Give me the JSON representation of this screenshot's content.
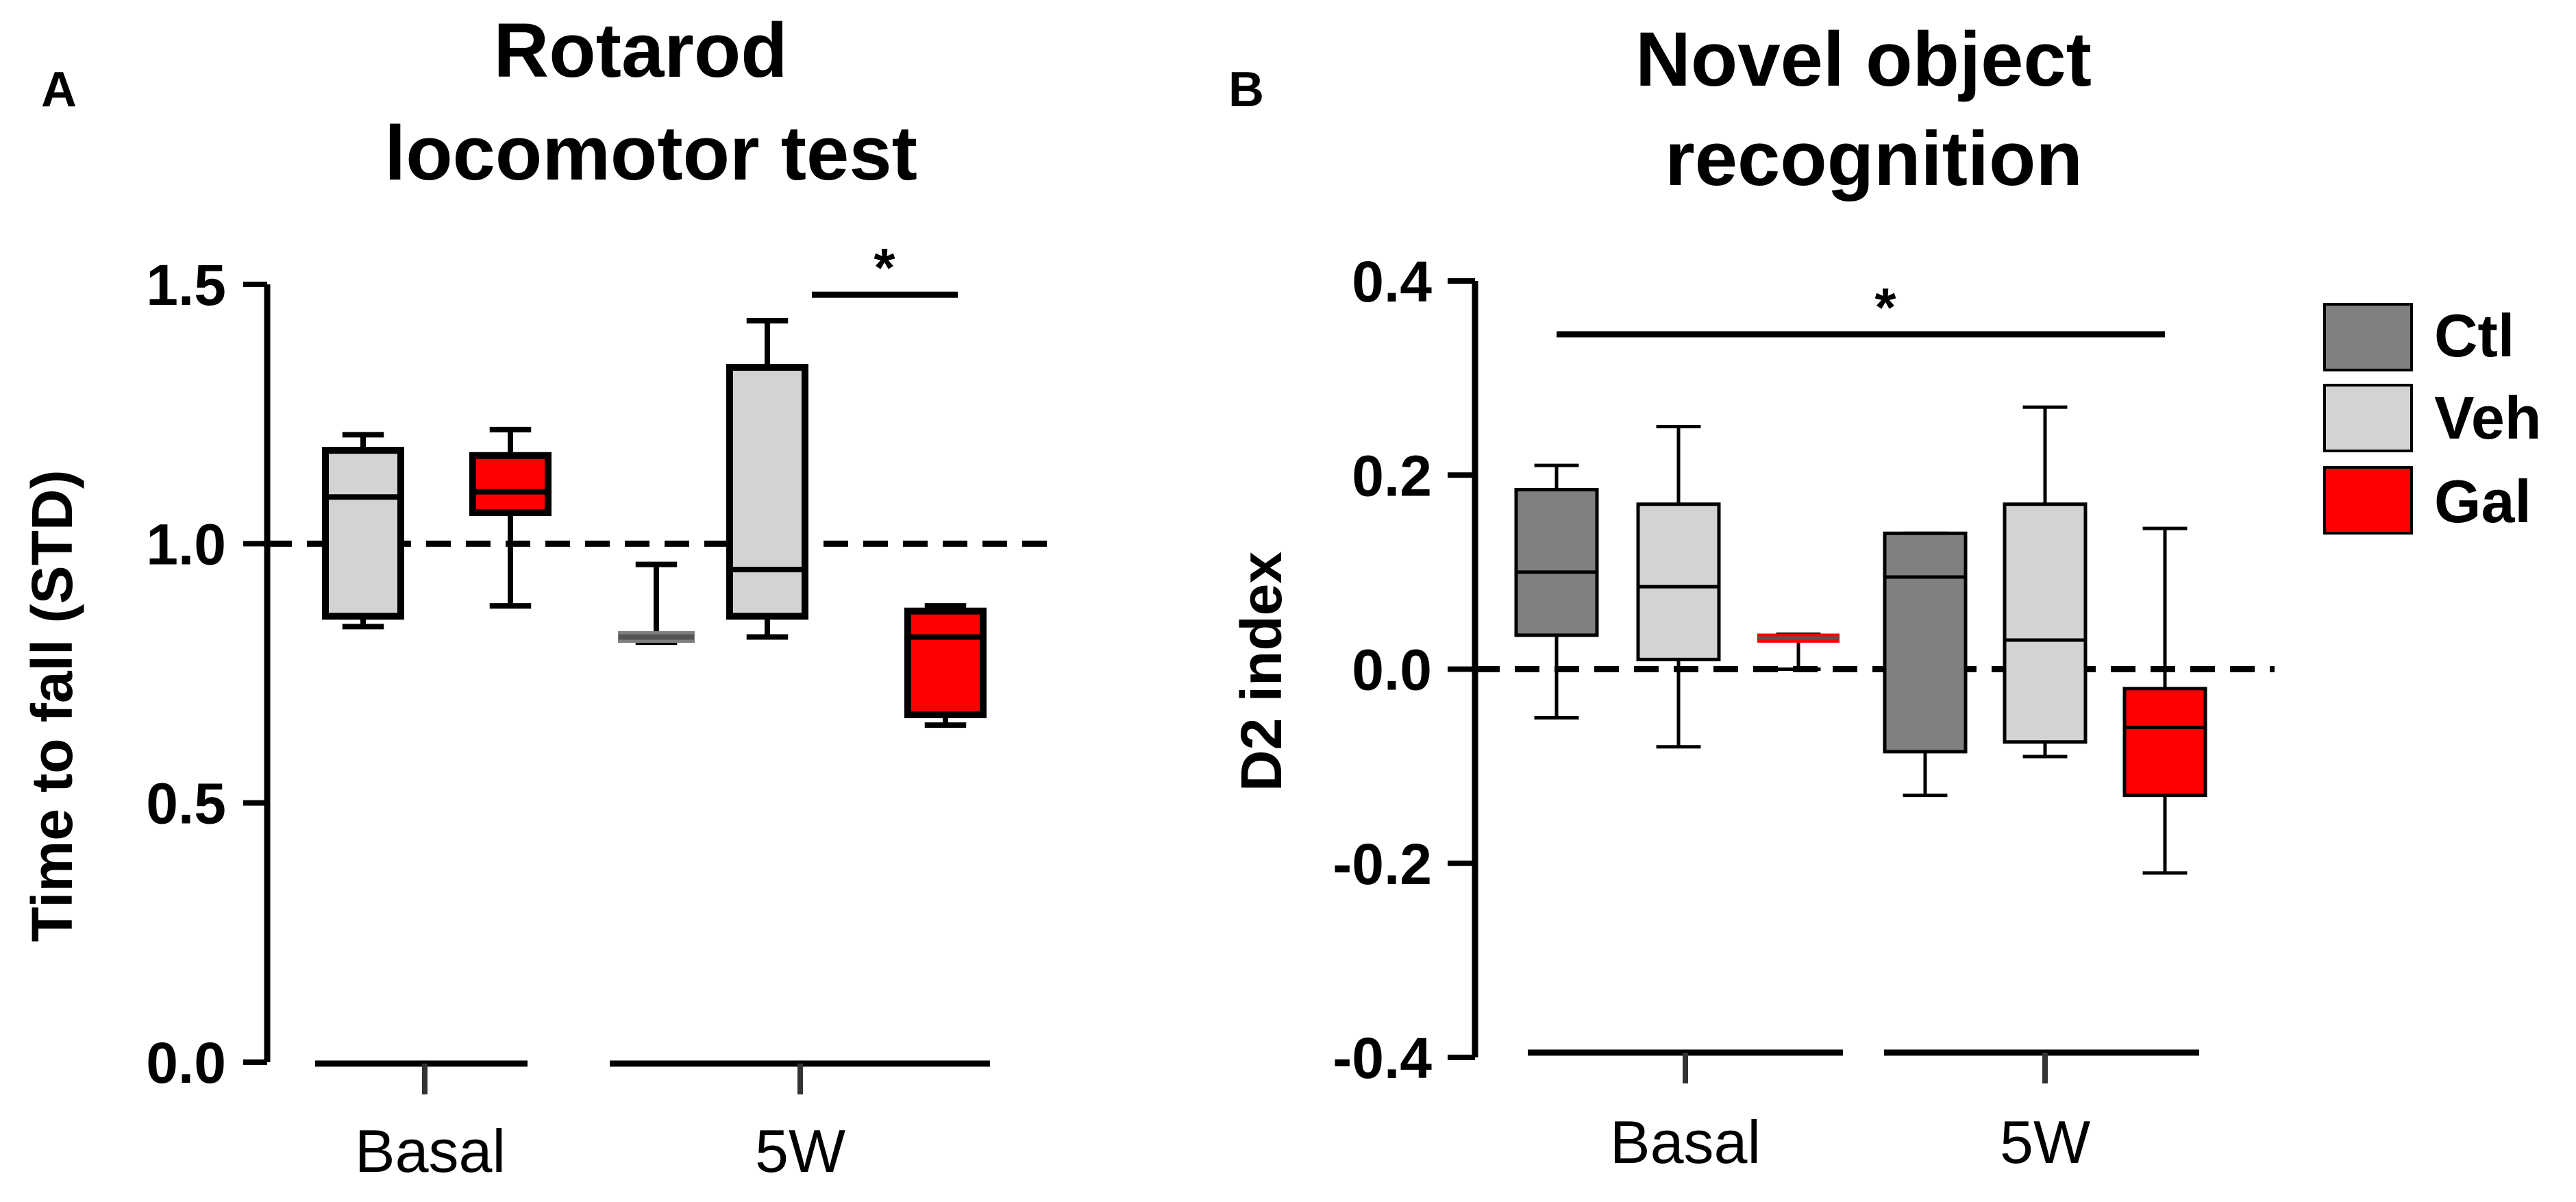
{
  "colors": {
    "Ctl": "#808080",
    "Veh": "#d3d3d3",
    "Gal": "#ff0000",
    "axis": "#000000"
  },
  "legend": [
    {
      "label": "Ctl",
      "color": "#808080"
    },
    {
      "label": "Veh",
      "color": "#d3d3d3"
    },
    {
      "label": "Gal",
      "color": "#ff0000"
    }
  ],
  "chart_data": [
    {
      "type": "box",
      "panel": "A",
      "title_lines": [
        "Rotarod",
        "locomotor test"
      ],
      "ylabel": "Time to fall (STD)",
      "xlabel": "",
      "ylim": [
        0,
        1.5
      ],
      "yticks": [
        "0.0",
        "0.5",
        "1.0",
        "1.5"
      ],
      "yticks_values": [
        0,
        0.5,
        1.0,
        1.5
      ],
      "categories": [
        "Basal",
        "5W"
      ],
      "reference_line": 1.0,
      "series": [
        {
          "name": "Ctl",
          "values": [
            null,
            {
              "min": 0.81,
              "q1": 0.81,
              "median": 0.82,
              "q3": 0.83,
              "max": 0.96
            }
          ]
        },
        {
          "name": "Veh",
          "values": [
            {
              "min": 0.84,
              "q1": 0.86,
              "median": 1.09,
              "q3": 1.18,
              "max": 1.21
            },
            {
              "min": 0.82,
              "q1": 0.86,
              "median": 0.95,
              "q3": 1.34,
              "max": 1.43
            }
          ]
        },
        {
          "name": "Gal",
          "values": [
            {
              "min": 0.88,
              "q1": 1.06,
              "median": 1.1,
              "q3": 1.17,
              "max": 1.22
            },
            {
              "min": 0.65,
              "q1": 0.67,
              "median": 0.82,
              "q3": 0.87,
              "max": 0.88
            }
          ]
        }
      ],
      "annotations": [
        {
          "text": "*",
          "from": "5W Veh",
          "to": "5W Gal",
          "y": 1.48
        }
      ]
    },
    {
      "type": "box",
      "panel": "B",
      "title_lines": [
        "Novel object",
        "recognition"
      ],
      "ylabel": "D2 index",
      "xlabel": "",
      "ylim": [
        -0.4,
        0.4
      ],
      "yticks": [
        "-0.4",
        "-0.2",
        "0.0",
        "0.2",
        "0.4"
      ],
      "yticks_values": [
        -0.4,
        -0.2,
        0.0,
        0.2,
        0.4
      ],
      "categories": [
        "Basal",
        "5W"
      ],
      "reference_line": 0.0,
      "series": [
        {
          "name": "Ctl",
          "values": [
            {
              "min": -0.05,
              "q1": 0.035,
              "median": 0.1,
              "q3": 0.185,
              "max": 0.21
            },
            {
              "min": -0.13,
              "q1": -0.085,
              "median": 0.095,
              "q3": 0.14,
              "max": 0.14
            }
          ]
        },
        {
          "name": "Veh",
          "values": [
            {
              "min": -0.08,
              "q1": 0.01,
              "median": 0.085,
              "q3": 0.17,
              "max": 0.25
            },
            {
              "min": -0.09,
              "q1": -0.075,
              "median": 0.03,
              "q3": 0.17,
              "max": 0.27
            }
          ]
        },
        {
          "name": "Gal",
          "values": [
            {
              "min": 0.0,
              "q1": 0.028,
              "median": 0.032,
              "q3": 0.036,
              "max": 0.036
            },
            {
              "min": -0.21,
              "q1": -0.13,
              "median": -0.06,
              "q3": -0.02,
              "max": 0.145
            }
          ]
        }
      ],
      "annotations": [
        {
          "text": "*",
          "from": "Basal Ctl",
          "to": "5W Gal",
          "y": 0.345
        }
      ]
    }
  ]
}
